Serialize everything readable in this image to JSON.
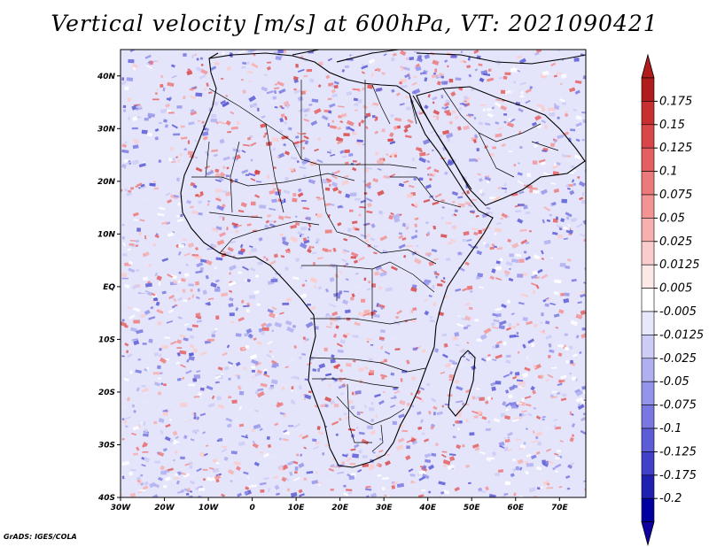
{
  "title": "Vertical velocity [m/s] at 600hPa, VT: 2021090421",
  "footer": "GrADS: IGES/COLA",
  "chart_data": {
    "type": "heatmap",
    "title": "Vertical velocity [m/s] at 600hPa, VT: 2021090421",
    "variable": "Vertical velocity",
    "units": "m/s",
    "level": "600hPa",
    "valid_time": "2021090421",
    "x_range": [
      -30,
      76
    ],
    "y_range": [
      -40,
      45
    ],
    "x_ticks": [
      "30W",
      "20W",
      "10W",
      "0",
      "10E",
      "20E",
      "30E",
      "40E",
      "50E",
      "60E",
      "70E"
    ],
    "y_ticks": [
      "40N",
      "30N",
      "20N",
      "10N",
      "EQ",
      "10S",
      "20S",
      "30S",
      "40S"
    ],
    "colorbar": {
      "labels": [
        "0.175",
        "0.15",
        "0.125",
        "0.1",
        "0.075",
        "0.05",
        "0.025",
        "0.0125",
        "0.005",
        "-0.005",
        "-0.0125",
        "-0.025",
        "-0.05",
        "-0.075",
        "-0.1",
        "-0.125",
        "-0.175",
        "-0.2"
      ],
      "colors": [
        "#b01c1c",
        "#c83030",
        "#d84848",
        "#e46060",
        "#ec7a7a",
        "#f29494",
        "#f6b0b0",
        "#facccc",
        "#fde8e8",
        "#ffffff",
        "#e8e8fc",
        "#ccccf6",
        "#b0b0f0",
        "#9494ea",
        "#7878e0",
        "#5c5cd6",
        "#4040c8",
        "#2020b0",
        "#0000a0"
      ],
      "arrow_top": "#b01c1c",
      "arrow_bottom": "#1000a0"
    }
  }
}
